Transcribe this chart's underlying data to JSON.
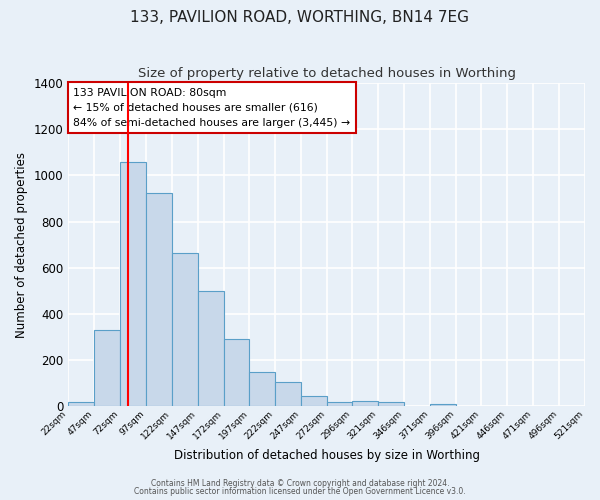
{
  "title": "133, PAVILION ROAD, WORTHING, BN14 7EG",
  "subtitle": "Size of property relative to detached houses in Worthing",
  "xlabel": "Distribution of detached houses by size in Worthing",
  "ylabel": "Number of detached properties",
  "bin_edges": [
    22,
    47,
    72,
    97,
    122,
    147,
    172,
    197,
    222,
    247,
    272,
    296,
    321,
    346,
    371,
    396,
    421,
    446,
    471,
    496,
    521
  ],
  "bar_heights": [
    20,
    330,
    1060,
    925,
    665,
    500,
    290,
    150,
    105,
    45,
    20,
    25,
    20,
    0,
    10,
    0,
    0,
    0,
    0,
    0
  ],
  "bar_color": "#c8d8ea",
  "bar_edge_color": "#5a9fc8",
  "red_line_x": 80,
  "ylim": [
    0,
    1400
  ],
  "yticks": [
    0,
    200,
    400,
    600,
    800,
    1000,
    1200,
    1400
  ],
  "annotation_title": "133 PAVILION ROAD: 80sqm",
  "annotation_line1": "← 15% of detached houses are smaller (616)",
  "annotation_line2": "84% of semi-detached houses are larger (3,445) →",
  "annotation_box_color": "#ffffff",
  "annotation_box_edge_color": "#cc0000",
  "footer_line1": "Contains HM Land Registry data © Crown copyright and database right 2024.",
  "footer_line2": "Contains public sector information licensed under the Open Government Licence v3.0.",
  "background_color": "#e8f0f8",
  "grid_color": "#d0d8e8",
  "title_fontsize": 11,
  "subtitle_fontsize": 9.5
}
